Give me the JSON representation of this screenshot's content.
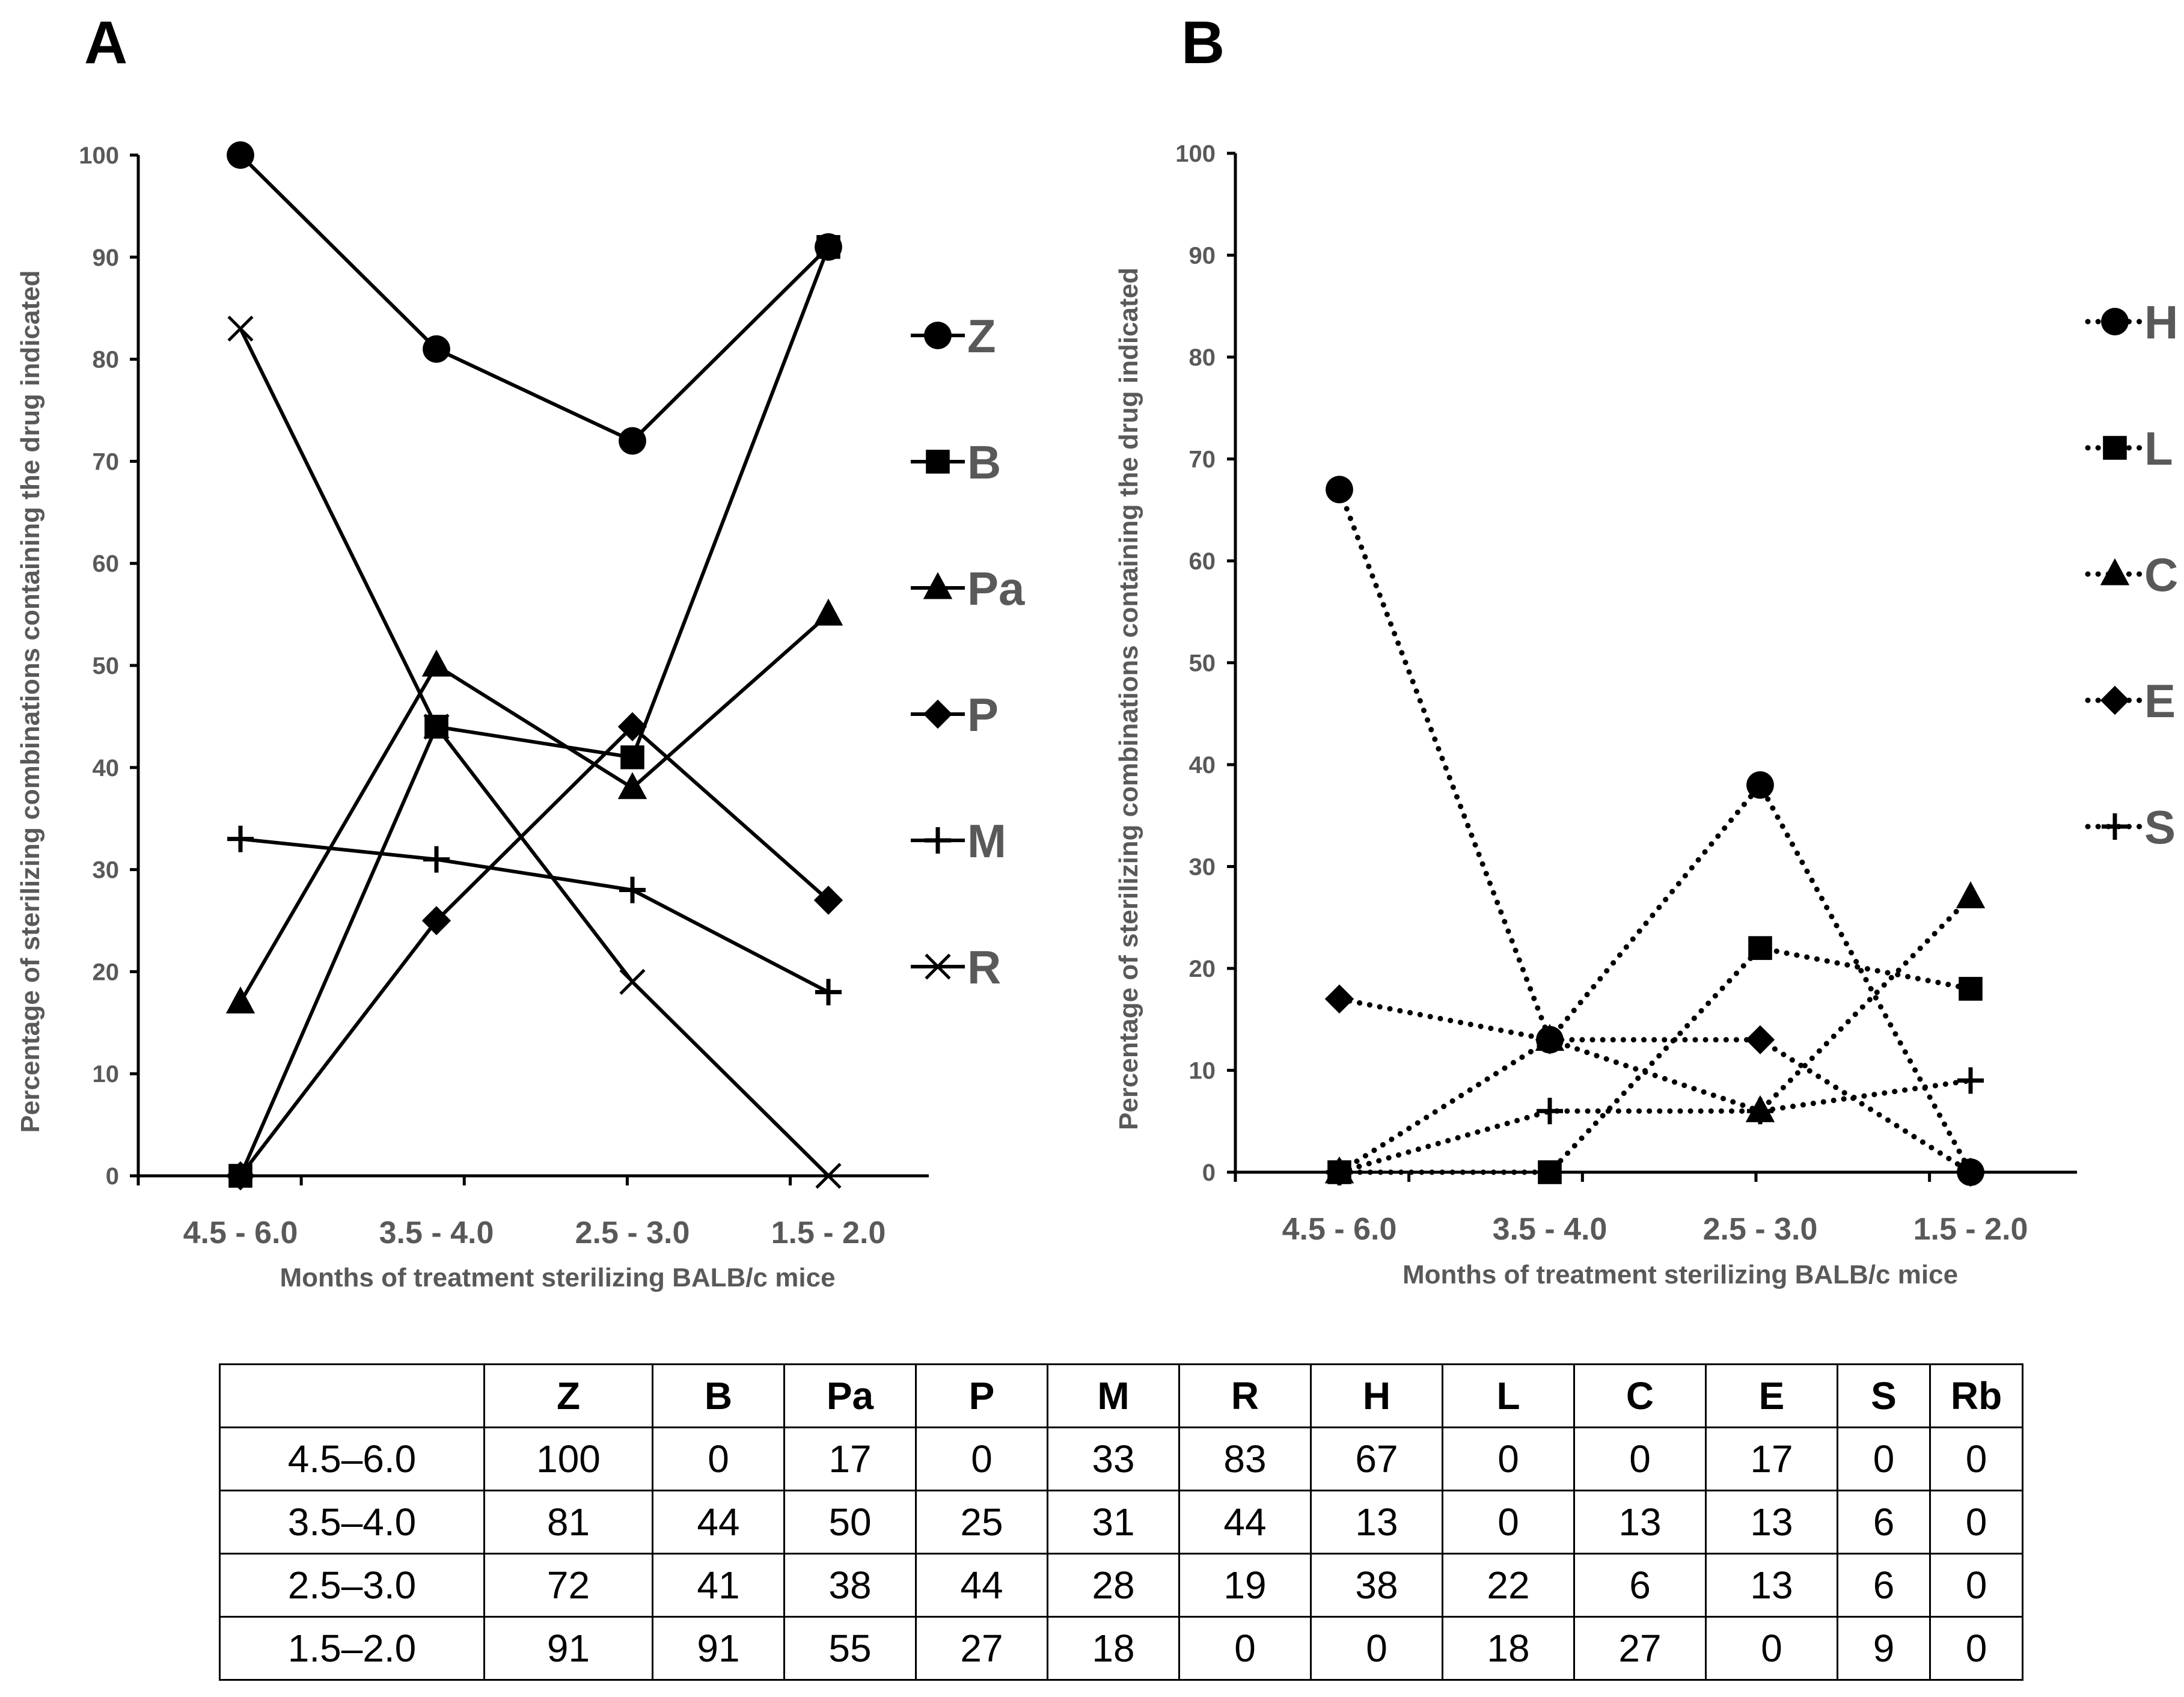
{
  "chart_data": [
    {
      "panel": "A",
      "type": "line",
      "line_style": "solid",
      "categories": [
        "4.5 - 6.0",
        "3.5 - 4.0",
        "2.5 - 3.0",
        "1.5 -  2.0"
      ],
      "ylabel": "Percentage of sterilizing combinations containing the drug indicated",
      "xlabel": "Months of treatment sterilizing BALB/c mice",
      "ylim": [
        0,
        100
      ],
      "yticks": [
        "0",
        "10",
        "20",
        "30",
        "40",
        "50",
        "60",
        "70",
        "80",
        "90",
        "100"
      ],
      "series": [
        {
          "name": "Z",
          "marker": "circle",
          "values": [
            100,
            81,
            72,
            91
          ]
        },
        {
          "name": "B",
          "marker": "square",
          "values": [
            0,
            44,
            41,
            91
          ]
        },
        {
          "name": "Pa",
          "marker": "triangle",
          "values": [
            17,
            50,
            38,
            55
          ]
        },
        {
          "name": "P",
          "marker": "diamond",
          "values": [
            0,
            25,
            44,
            27
          ]
        },
        {
          "name": "M",
          "marker": "plus",
          "values": [
            33,
            31,
            28,
            18
          ]
        },
        {
          "name": "R",
          "marker": "x",
          "values": [
            83,
            44,
            19,
            0
          ]
        }
      ]
    },
    {
      "panel": "B",
      "type": "line",
      "line_style": "dotted",
      "categories": [
        "4.5 - 6.0",
        "3.5 - 4.0",
        "2.5 - 3.0",
        "1.5 -  2.0"
      ],
      "ylabel": "Percentage of sterilizing combinations containing the drug indicated",
      "xlabel": "Months of treatment sterilizing BALB/c mice",
      "ylim": [
        0,
        100
      ],
      "yticks": [
        "0",
        "10",
        "20",
        "30",
        "40",
        "50",
        "60",
        "70",
        "80",
        "90",
        "100"
      ],
      "series": [
        {
          "name": "H",
          "marker": "circle",
          "values": [
            67,
            13,
            38,
            0
          ]
        },
        {
          "name": "L",
          "marker": "square",
          "values": [
            0,
            0,
            22,
            18
          ]
        },
        {
          "name": "C",
          "marker": "triangle",
          "values": [
            0,
            13,
            6,
            27
          ]
        },
        {
          "name": "E",
          "marker": "diamond",
          "values": [
            17,
            13,
            13,
            0
          ]
        },
        {
          "name": "S",
          "marker": "plus",
          "values": [
            0,
            6,
            6,
            9
          ]
        }
      ]
    },
    {
      "type": "table",
      "columns": [
        "",
        "Z",
        "B",
        "Pa",
        "P",
        "M",
        "R",
        "H",
        "L",
        "C",
        "E",
        "S",
        "Rb"
      ],
      "rows": [
        {
          "label": "4.5–6.0",
          "values": [
            "100",
            "0",
            "17",
            "0",
            "33",
            "83",
            "67",
            "0",
            "0",
            "17",
            "0",
            "0"
          ]
        },
        {
          "label": "3.5–4.0",
          "values": [
            "81",
            "44",
            "50",
            "25",
            "31",
            "44",
            "13",
            "0",
            "13",
            "13",
            "6",
            "0"
          ]
        },
        {
          "label": "2.5–3.0",
          "values": [
            "72",
            "41",
            "38",
            "44",
            "28",
            "19",
            "38",
            "22",
            "6",
            "13",
            "6",
            "0"
          ]
        },
        {
          "label": "1.5–2.0",
          "values": [
            "91",
            "91",
            "55",
            "27",
            "18",
            "0",
            "0",
            "18",
            "27",
            "0",
            "9",
            "0"
          ]
        }
      ]
    }
  ],
  "colors": {
    "line": "#000000",
    "text_gray": "#595959",
    "background": "#ffffff"
  }
}
